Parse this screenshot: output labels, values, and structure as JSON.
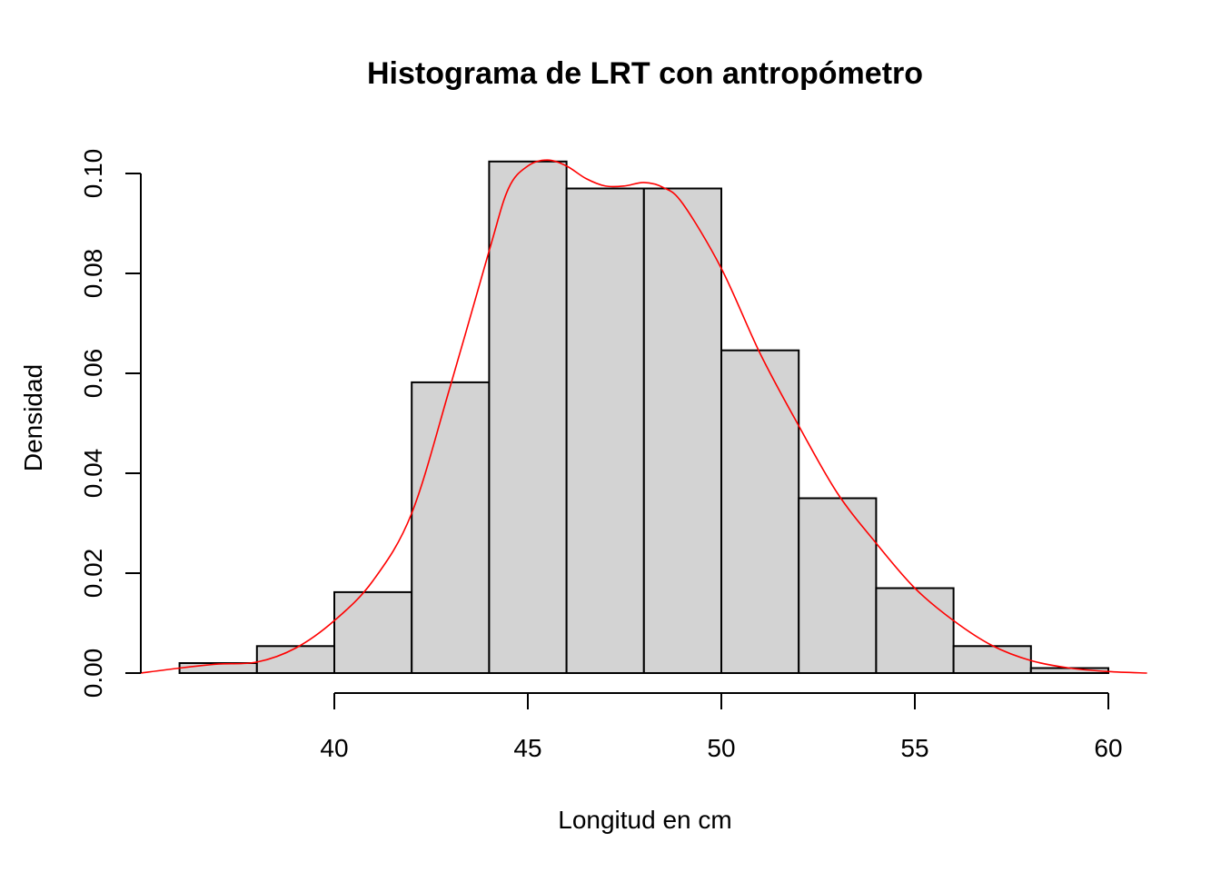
{
  "chart_data": {
    "type": "bar",
    "title": "Histograma de LRT con antropómetro",
    "xlabel": "Longitud en cm",
    "ylabel": "Densidad",
    "xlim": [
      35,
      61
    ],
    "ylim": [
      0,
      0.1
    ],
    "x_ticks": [
      40,
      45,
      50,
      55,
      60
    ],
    "x_tick_labels": [
      "40",
      "45",
      "50",
      "55",
      "60"
    ],
    "y_ticks": [
      0.0,
      0.02,
      0.04,
      0.06,
      0.08,
      0.1
    ],
    "y_tick_labels": [
      "0.00",
      "0.02",
      "0.04",
      "0.06",
      "0.08",
      "0.10"
    ],
    "bins": [
      {
        "start": 36,
        "end": 38,
        "density": 0.002
      },
      {
        "start": 38,
        "end": 40,
        "density": 0.0054
      },
      {
        "start": 40,
        "end": 42,
        "density": 0.0162
      },
      {
        "start": 42,
        "end": 44,
        "density": 0.0582
      },
      {
        "start": 44,
        "end": 46,
        "density": 0.1024
      },
      {
        "start": 46,
        "end": 48,
        "density": 0.097
      },
      {
        "start": 48,
        "end": 50,
        "density": 0.097
      },
      {
        "start": 50,
        "end": 52,
        "density": 0.0646
      },
      {
        "start": 52,
        "end": 54,
        "density": 0.035
      },
      {
        "start": 54,
        "end": 56,
        "density": 0.017
      },
      {
        "start": 56,
        "end": 58,
        "density": 0.0054
      },
      {
        "start": 58,
        "end": 60,
        "density": 0.001
      }
    ],
    "density_curve": {
      "color": "#ff0000",
      "x": [
        35,
        36,
        37,
        38,
        39,
        40,
        41,
        42,
        43,
        44,
        44.5,
        45,
        45.5,
        46,
        46.5,
        47,
        47.5,
        48,
        48.5,
        49,
        50,
        51,
        52,
        53,
        54,
        55,
        56,
        57,
        58,
        59,
        60,
        61
      ],
      "y": [
        0.0,
        0.001,
        0.0018,
        0.0022,
        0.005,
        0.0105,
        0.0185,
        0.032,
        0.0575,
        0.0845,
        0.097,
        0.1015,
        0.1027,
        0.1015,
        0.099,
        0.0975,
        0.0975,
        0.0982,
        0.0972,
        0.094,
        0.081,
        0.064,
        0.0495,
        0.036,
        0.026,
        0.017,
        0.0105,
        0.0055,
        0.0025,
        0.001,
        0.0003,
        0.0
      ]
    },
    "bar_color": "#d3d3d3"
  }
}
